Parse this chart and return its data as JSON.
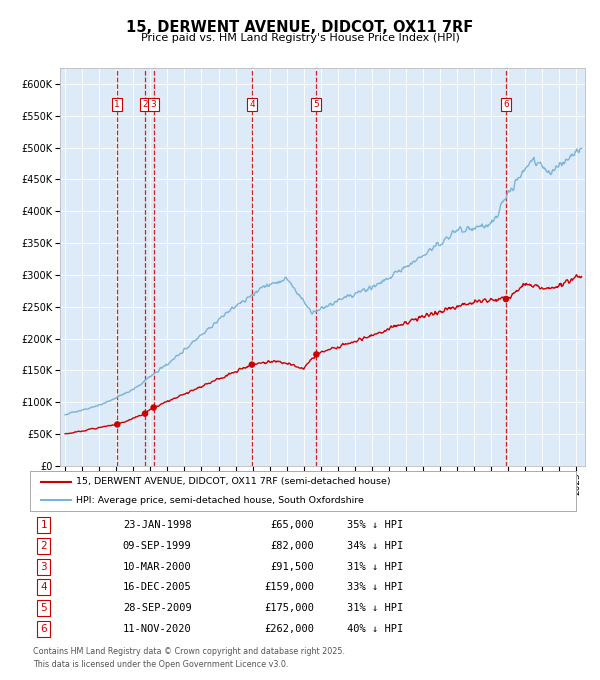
{
  "title": "15, DERWENT AVENUE, DIDCOT, OX11 7RF",
  "subtitle": "Price paid vs. HM Land Registry's House Price Index (HPI)",
  "legend_line1": "15, DERWENT AVENUE, DIDCOT, OX11 7RF (semi-detached house)",
  "legend_line2": "HPI: Average price, semi-detached house, South Oxfordshire",
  "footer1": "Contains HM Land Registry data © Crown copyright and database right 2025.",
  "footer2": "This data is licensed under the Open Government Licence v3.0.",
  "bg_color": "#ddeaf7",
  "red_color": "#cc0000",
  "blue_color": "#7ab4d8",
  "transactions": [
    {
      "num": 1,
      "date": "23-JAN-1998",
      "price": 65000,
      "pct": "35%",
      "x_year": 1998.06
    },
    {
      "num": 2,
      "date": "09-SEP-1999",
      "price": 82000,
      "pct": "34%",
      "x_year": 1999.69
    },
    {
      "num": 3,
      "date": "10-MAR-2000",
      "price": 91500,
      "pct": "31%",
      "x_year": 2000.19
    },
    {
      "num": 4,
      "date": "16-DEC-2005",
      "price": 159000,
      "pct": "33%",
      "x_year": 2005.96
    },
    {
      "num": 5,
      "date": "28-SEP-2009",
      "price": 175000,
      "pct": "31%",
      "x_year": 2009.74
    },
    {
      "num": 6,
      "date": "11-NOV-2020",
      "price": 262000,
      "pct": "40%",
      "x_year": 2020.86
    }
  ],
  "ylim": [
    0,
    625000
  ],
  "yticks": [
    0,
    50000,
    100000,
    150000,
    200000,
    250000,
    300000,
    350000,
    400000,
    450000,
    500000,
    550000,
    600000
  ],
  "xlim": [
    1994.7,
    2025.5
  ],
  "xticks": [
    1995,
    1996,
    1997,
    1998,
    1999,
    2000,
    2001,
    2002,
    2003,
    2004,
    2005,
    2006,
    2007,
    2008,
    2009,
    2010,
    2011,
    2012,
    2013,
    2014,
    2015,
    2016,
    2017,
    2018,
    2019,
    2020,
    2021,
    2022,
    2023,
    2024,
    2025
  ],
  "hpi_anchors_x": [
    1995.0,
    1997.0,
    1999.0,
    2001.5,
    2004.0,
    2006.5,
    2008.0,
    2009.5,
    2011.0,
    2013.0,
    2016.0,
    2018.0,
    2020.0,
    2021.5,
    2022.5,
    2023.5,
    2025.3
  ],
  "hpi_anchors_y": [
    80000,
    95000,
    120000,
    170000,
    230000,
    280000,
    295000,
    240000,
    260000,
    280000,
    330000,
    370000,
    380000,
    450000,
    480000,
    460000,
    500000
  ],
  "prop_anchors_x": [
    1995.0,
    1998.06,
    1999.69,
    2000.19,
    2005.96,
    2007.5,
    2009.0,
    2009.74,
    2012.0,
    2016.0,
    2019.0,
    2020.86,
    2022.0,
    2023.5,
    2025.3
  ],
  "prop_anchors_y": [
    50000,
    65000,
    82000,
    91500,
    159000,
    165000,
    152000,
    175000,
    195000,
    235000,
    258000,
    262000,
    285000,
    278000,
    300000
  ]
}
